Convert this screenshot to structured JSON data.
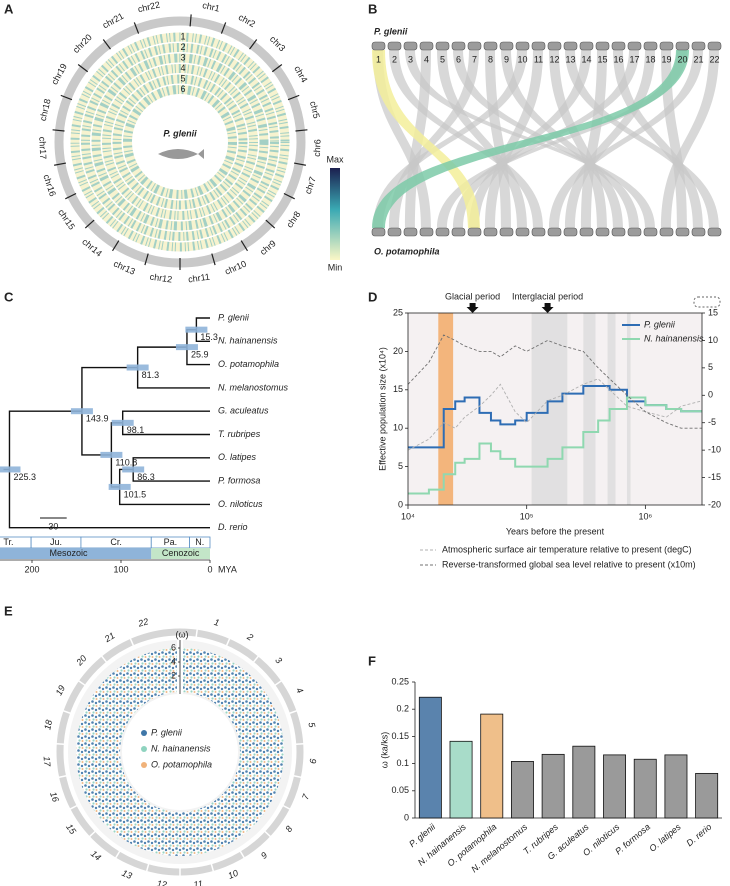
{
  "panels": {
    "A": {
      "letter": "A",
      "center_label": "P. glenii",
      "chromosomes": [
        "chr1",
        "chr2",
        "chr3",
        "chr4",
        "chr5",
        "chr6",
        "chr7",
        "chr8",
        "chr9",
        "chr10",
        "chr11",
        "chr12",
        "chr13",
        "chr14",
        "chr15",
        "chr16",
        "chr17",
        "chr18",
        "chr19",
        "chr20",
        "chr21",
        "chr22"
      ],
      "tracks": [
        "1",
        "2",
        "3",
        "4",
        "5",
        "6"
      ],
      "colorbar": {
        "max": "Max",
        "min": "Min"
      }
    },
    "B": {
      "letter": "B",
      "top_genome": "P. glenii",
      "bottom_genome": "O. potamophila",
      "chromosomes": [
        "1",
        "2",
        "3",
        "4",
        "5",
        "6",
        "7",
        "8",
        "9",
        "10",
        "11",
        "12",
        "13",
        "14",
        "15",
        "16",
        "17",
        "18",
        "19",
        "20",
        "21",
        "22"
      ]
    },
    "C": {
      "letter": "C",
      "leaves": [
        {
          "name": "P. glenii",
          "color": "#2e6db4"
        },
        {
          "name": "N. hainanensis",
          "color": "#4fb8a0"
        },
        {
          "name": "O. potamophila",
          "color": "#222"
        },
        {
          "name": "N. melanostomus",
          "color": "#222"
        },
        {
          "name": "G. aculeatus",
          "color": "#222"
        },
        {
          "name": "T. rubripes",
          "color": "#222"
        },
        {
          "name": "O. latipes",
          "color": "#222"
        },
        {
          "name": "P. formosa",
          "color": "#222"
        },
        {
          "name": "O. niloticus",
          "color": "#222"
        },
        {
          "name": "D. rerio",
          "color": "#222"
        }
      ],
      "node_ages": [
        15.3,
        25.9,
        81.3,
        98.1,
        86.3,
        101.5,
        110.8,
        143.9,
        225.3
      ],
      "scale_bar": 30.0,
      "periods": [
        {
          "name": "Tr.",
          "from": 252,
          "to": 201
        },
        {
          "name": "Ju.",
          "from": 201,
          "to": 145
        },
        {
          "name": "Cr.",
          "from": 145,
          "to": 66
        },
        {
          "name": "Pa.",
          "from": 66,
          "to": 23
        },
        {
          "name": "N.",
          "from": 23,
          "to": 0
        }
      ],
      "eras": [
        {
          "name": "Mesozoic",
          "from": 252,
          "to": 66,
          "color": "#8fb4d9"
        },
        {
          "name": "Cenozoic",
          "from": 66,
          "to": 0,
          "color": "#c3e6c8"
        }
      ],
      "xticks": [
        200,
        100,
        0
      ],
      "xunit": "MYA"
    },
    "D": {
      "letter": "D"
    },
    "E": {
      "letter": "E",
      "axis_label": "(ω)",
      "rticks": [
        2,
        4,
        6
      ],
      "chromosomes": [
        "1",
        "2",
        "3",
        "4",
        "5",
        "6",
        "7",
        "8",
        "9",
        "10",
        "11",
        "12",
        "13",
        "14",
        "15",
        "16",
        "17",
        "18",
        "19",
        "20",
        "21",
        "22"
      ],
      "legend": [
        {
          "name": "P. glenii",
          "color": "#3f77a8"
        },
        {
          "name": "N. hainanensis",
          "color": "#8fd3bf"
        },
        {
          "name": "O. potamophila",
          "color": "#f0b27a"
        }
      ]
    },
    "F": {
      "letter": "F"
    }
  },
  "chart_data": [
    {
      "type": "line",
      "ylabel": "Effective population size (x10⁴)",
      "xlabel": "Years before the present",
      "xlog": true,
      "xlim": [
        10000,
        3000000
      ],
      "xticks": [
        {
          "value": 10000,
          "label": "10⁴"
        },
        {
          "value": 100000,
          "label": "10⁵"
        },
        {
          "value": 1000000,
          "label": "10⁶"
        }
      ],
      "ylim": [
        0,
        25
      ],
      "yticks": [
        0,
        5,
        10,
        15,
        20,
        25
      ],
      "y2lim": [
        -20,
        15
      ],
      "y2ticks": [
        -20,
        -15,
        -10,
        -5,
        0,
        5,
        10,
        15
      ],
      "annotations": [
        {
          "text": "Glacial period",
          "x": 35000
        },
        {
          "text": "Interglacial period",
          "x": 150000
        }
      ],
      "bands": [
        {
          "from": 18000,
          "to": 24000,
          "color": "#f2a65e"
        },
        {
          "from": 110000,
          "to": 220000,
          "color": "#dcdcdc"
        },
        {
          "from": 300000,
          "to": 380000,
          "color": "#dcdcdc"
        },
        {
          "from": 480000,
          "to": 560000,
          "color": "#dcdcdc"
        },
        {
          "from": 700000,
          "to": 750000,
          "color": "#dcdcdc"
        }
      ],
      "legend": "upper right",
      "x": [
        10000,
        15000,
        20000,
        25000,
        30000,
        40000,
        50000,
        60000,
        80000,
        100000,
        150000,
        200000,
        300000,
        400000,
        500000,
        700000,
        1000000,
        1500000,
        2000000,
        3000000
      ],
      "series": [
        {
          "name": "P. glenii",
          "color": "#2e6db4",
          "values": [
            7.5,
            7.5,
            12.5,
            13.5,
            14,
            12,
            11,
            10.5,
            11,
            12,
            13.5,
            14.5,
            15.5,
            15.5,
            15,
            13.5,
            13,
            12.5,
            12.2,
            12.2
          ]
        },
        {
          "name": "N. hainanensis",
          "color": "#8fd8b0",
          "values": [
            1.5,
            2,
            4,
            5.5,
            6,
            8,
            7,
            6,
            5,
            5,
            6,
            7.5,
            9.5,
            11,
            12.5,
            14,
            13,
            12.5,
            12.2,
            12.2
          ]
        },
        {
          "name": "Atmospheric surface air temperature relative to present (degC)",
          "color": "#b0b0b0",
          "dashed": true,
          "axis": "y2",
          "values": [
            -10,
            -8,
            -5,
            -6,
            -4,
            -2,
            0,
            2,
            -3,
            -5,
            -1,
            0,
            2,
            3,
            1,
            -2,
            -3,
            -4,
            -2,
            -1
          ]
        },
        {
          "name": "Reverse-transformed global sea level relative to present (x10m)",
          "color": "#707070",
          "dashed": true,
          "axis": "y2",
          "values": [
            2,
            6,
            11,
            10,
            9,
            8,
            8,
            7,
            9,
            8,
            10,
            9,
            8,
            5,
            3,
            0,
            -3,
            -5,
            -6,
            -6
          ]
        }
      ]
    },
    {
      "type": "bar",
      "ylabel": "ω (ka/ks)",
      "categories": [
        "P. glenii",
        "N. hainanensis",
        "O. potamophila",
        "N. melanostomus",
        "T. rubripes",
        "G. aculeatus",
        "O. niloticus",
        "P. formosa",
        "O. latipes",
        "D. rerio"
      ],
      "values": [
        0.222,
        0.141,
        0.191,
        0.104,
        0.117,
        0.132,
        0.116,
        0.108,
        0.116,
        0.082
      ],
      "colors": [
        "#5a83ad",
        "#a8dcc9",
        "#efbf8a",
        "#9a9a9a",
        "#9a9a9a",
        "#9a9a9a",
        "#9a9a9a",
        "#9a9a9a",
        "#9a9a9a",
        "#9a9a9a"
      ],
      "ylim": [
        0,
        0.25
      ],
      "yticks": [
        0,
        0.05,
        0.1,
        0.15,
        0.2,
        0.25
      ]
    }
  ]
}
